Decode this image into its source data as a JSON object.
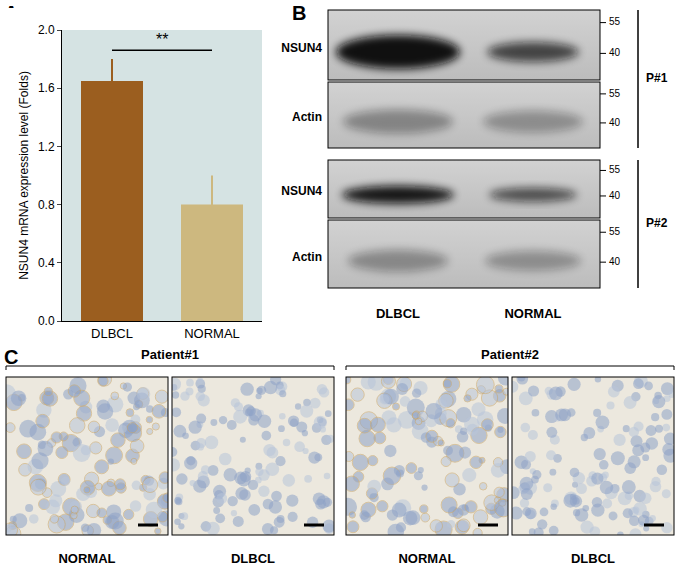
{
  "chart_data": {
    "type": "bar",
    "categories": [
      "DLBCL",
      "NORMAL"
    ],
    "values": [
      1.65,
      0.8
    ],
    "errors": [
      0.15,
      0.2
    ],
    "colors": [
      "#9b5e1f",
      "#cdb87f"
    ],
    "ylabel": "NSUN4 mRNA expression level (Folds)",
    "ylim": [
      0,
      2.0
    ],
    "yticks": [
      {
        "value": 0,
        "label": "0.0"
      },
      0.4,
      0.8,
      1.2,
      1.6,
      {
        "value": 2.0,
        "label": "2.0"
      }
    ],
    "annotations": [
      "**"
    ]
  },
  "panel_labels": [
    "A",
    "B",
    "C"
  ],
  "western_blot": {
    "markers": [
      55,
      40
    ],
    "lanes": [
      "DLBCL",
      "NORMAL"
    ],
    "patients": [
      {
        "label": "P#1",
        "rows": [
          "NSUN4",
          "Actin"
        ]
      },
      {
        "label": "P#2",
        "rows": [
          "NSUN4",
          "Actin"
        ]
      }
    ]
  },
  "ihc": {
    "patients": [
      {
        "title": "Patient#1",
        "images": [
          "NORMAL",
          "DLBCL"
        ]
      },
      {
        "title": "Patient#2",
        "images": [
          "NORMAL",
          "DLBCL"
        ]
      }
    ]
  }
}
